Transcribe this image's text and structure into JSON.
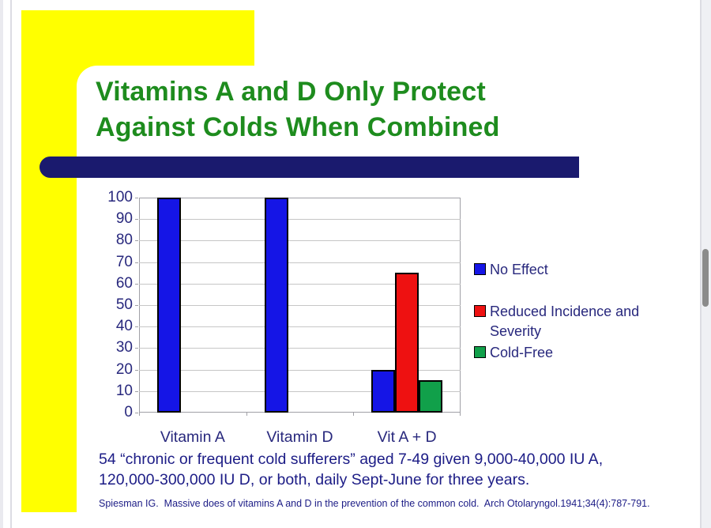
{
  "app": {
    "colors": {
      "page_bg": "#ffffff",
      "strip_left": "#eaeaef",
      "strip_right": "#eff0f4",
      "chrome_line": "#dcdce3",
      "scroll_thumb": "#8b8b8b",
      "accent_yellow": "#ffff00",
      "divider_navy": "#1a1a6e",
      "title_green": "#1e8c1e",
      "chart_text_navy": "#28287d",
      "body_text_navy": "#1c1c86"
    }
  },
  "slide": {
    "title": "Vitamins A and D Only Protect\nAgainst Colds When Combined",
    "note": "54 “chronic or frequent cold sufferers” aged 7-49 given 9,000-40,000 IU A,\n120,000-300,000 IU D, or both, daily Sept-June for three years.",
    "citation": "Spiesman IG.  Massive does of vitamins A and D in the prevention of the common cold.  Arch Otolaryngol.1941;34(4):787-791."
  },
  "chart_data": {
    "type": "bar",
    "categories": [
      "Vitamin A",
      "Vitamin D",
      "Vit A + D"
    ],
    "series": [
      {
        "name": "No Effect",
        "color": "#1515e6",
        "values": [
          100,
          100,
          20
        ]
      },
      {
        "name": "Reduced Incidence and Severity",
        "color": "#ee1111",
        "values": [
          null,
          null,
          65
        ]
      },
      {
        "name": "Cold-Free",
        "color": "#11a04a",
        "values": [
          null,
          null,
          15
        ]
      }
    ],
    "ylim": [
      0,
      100
    ],
    "ytick_step": 10,
    "grid": true,
    "grid_color": "#c6c6c6",
    "axis_color": "#a0a0a6",
    "bar_outline": "#000000",
    "legend_position": "right",
    "xlabel": "",
    "ylabel": ""
  }
}
